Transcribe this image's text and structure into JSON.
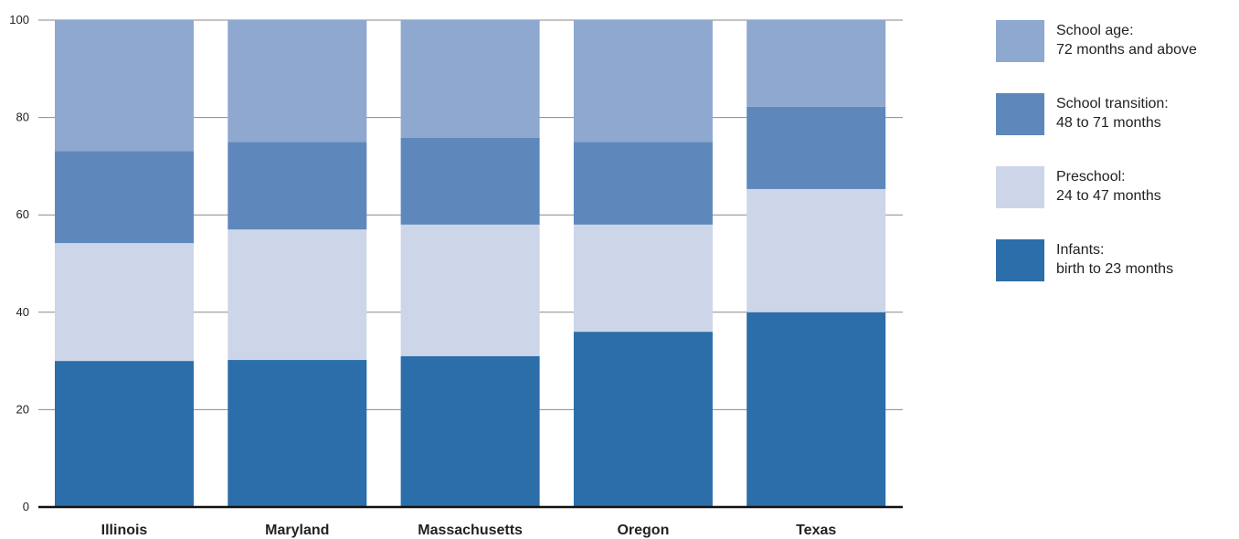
{
  "chart_data": {
    "type": "bar",
    "stacked": true,
    "title": "",
    "xlabel": "",
    "ylabel": "",
    "ylim": [
      0,
      100
    ],
    "yticks": [
      "0",
      "20",
      "40",
      "60",
      "80",
      "100"
    ],
    "categories": [
      "Illinois",
      "Maryland",
      "Massachusetts",
      "Oregon",
      "Texas"
    ],
    "series": [
      {
        "name": "Infants: birth to 23 months",
        "label_lines": [
          "Infants:",
          "birth to 23 months"
        ],
        "color": "#2b6ea9",
        "values": [
          30,
          30.2,
          31,
          36,
          40
        ]
      },
      {
        "name": "Preschool: 24 to 47 months",
        "label_lines": [
          "Preschool:",
          "24 to 47 months"
        ],
        "color": "#ccd6e8",
        "values": [
          24.2,
          26.8,
          27,
          22,
          25.3
        ]
      },
      {
        "name": "School transition: 48 to 71 months",
        "label_lines": [
          "School transition:",
          "48 to 71 months"
        ],
        "color": "#5e88bb",
        "values": [
          18.9,
          18,
          17.8,
          17,
          16.9
        ]
      },
      {
        "name": "School age: 72 months and above",
        "label_lines": [
          "School age:",
          "72 months and above"
        ],
        "color": "#8ea8cf",
        "values": [
          26.9,
          25,
          24.2,
          25,
          17.8
        ]
      }
    ],
    "grid": true,
    "legend_position": "right"
  }
}
